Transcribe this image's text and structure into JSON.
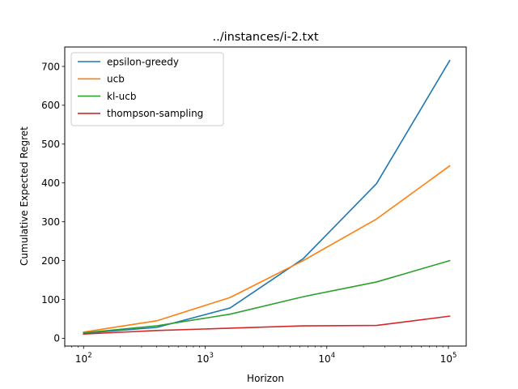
{
  "chart_data": {
    "type": "line",
    "title": "../instances/i-2.txt",
    "xlabel": "Horizon",
    "ylabel": "Cumulative Expected Regret",
    "xscale": "log",
    "xlim": [
      70,
      140000
    ],
    "ylim": [
      -20,
      750
    ],
    "x": [
      100,
      400,
      1600,
      6400,
      25600,
      102400
    ],
    "xticks": [
      {
        "value": 100,
        "base": "10",
        "exp": "2"
      },
      {
        "value": 1000,
        "base": "10",
        "exp": "3"
      },
      {
        "value": 10000,
        "base": "10",
        "exp": "4"
      },
      {
        "value": 100000,
        "base": "10",
        "exp": "5"
      }
    ],
    "yticks": [
      0,
      100,
      200,
      300,
      400,
      500,
      600,
      700
    ],
    "legend_position": "top-left",
    "grid": false,
    "series": [
      {
        "name": "epsilon-greedy",
        "color": "#1f77b4",
        "values": [
          13,
          28,
          78,
          205,
          398,
          715
        ]
      },
      {
        "name": "ucb",
        "color": "#ff7f0e",
        "values": [
          16,
          45,
          105,
          200,
          307,
          444
        ]
      },
      {
        "name": "kl-ucb",
        "color": "#2ca02c",
        "values": [
          14,
          32,
          62,
          107,
          145,
          200
        ]
      },
      {
        "name": "thompson-sampling",
        "color": "#d62728",
        "values": [
          11,
          20,
          26,
          32,
          33,
          57
        ]
      }
    ]
  }
}
